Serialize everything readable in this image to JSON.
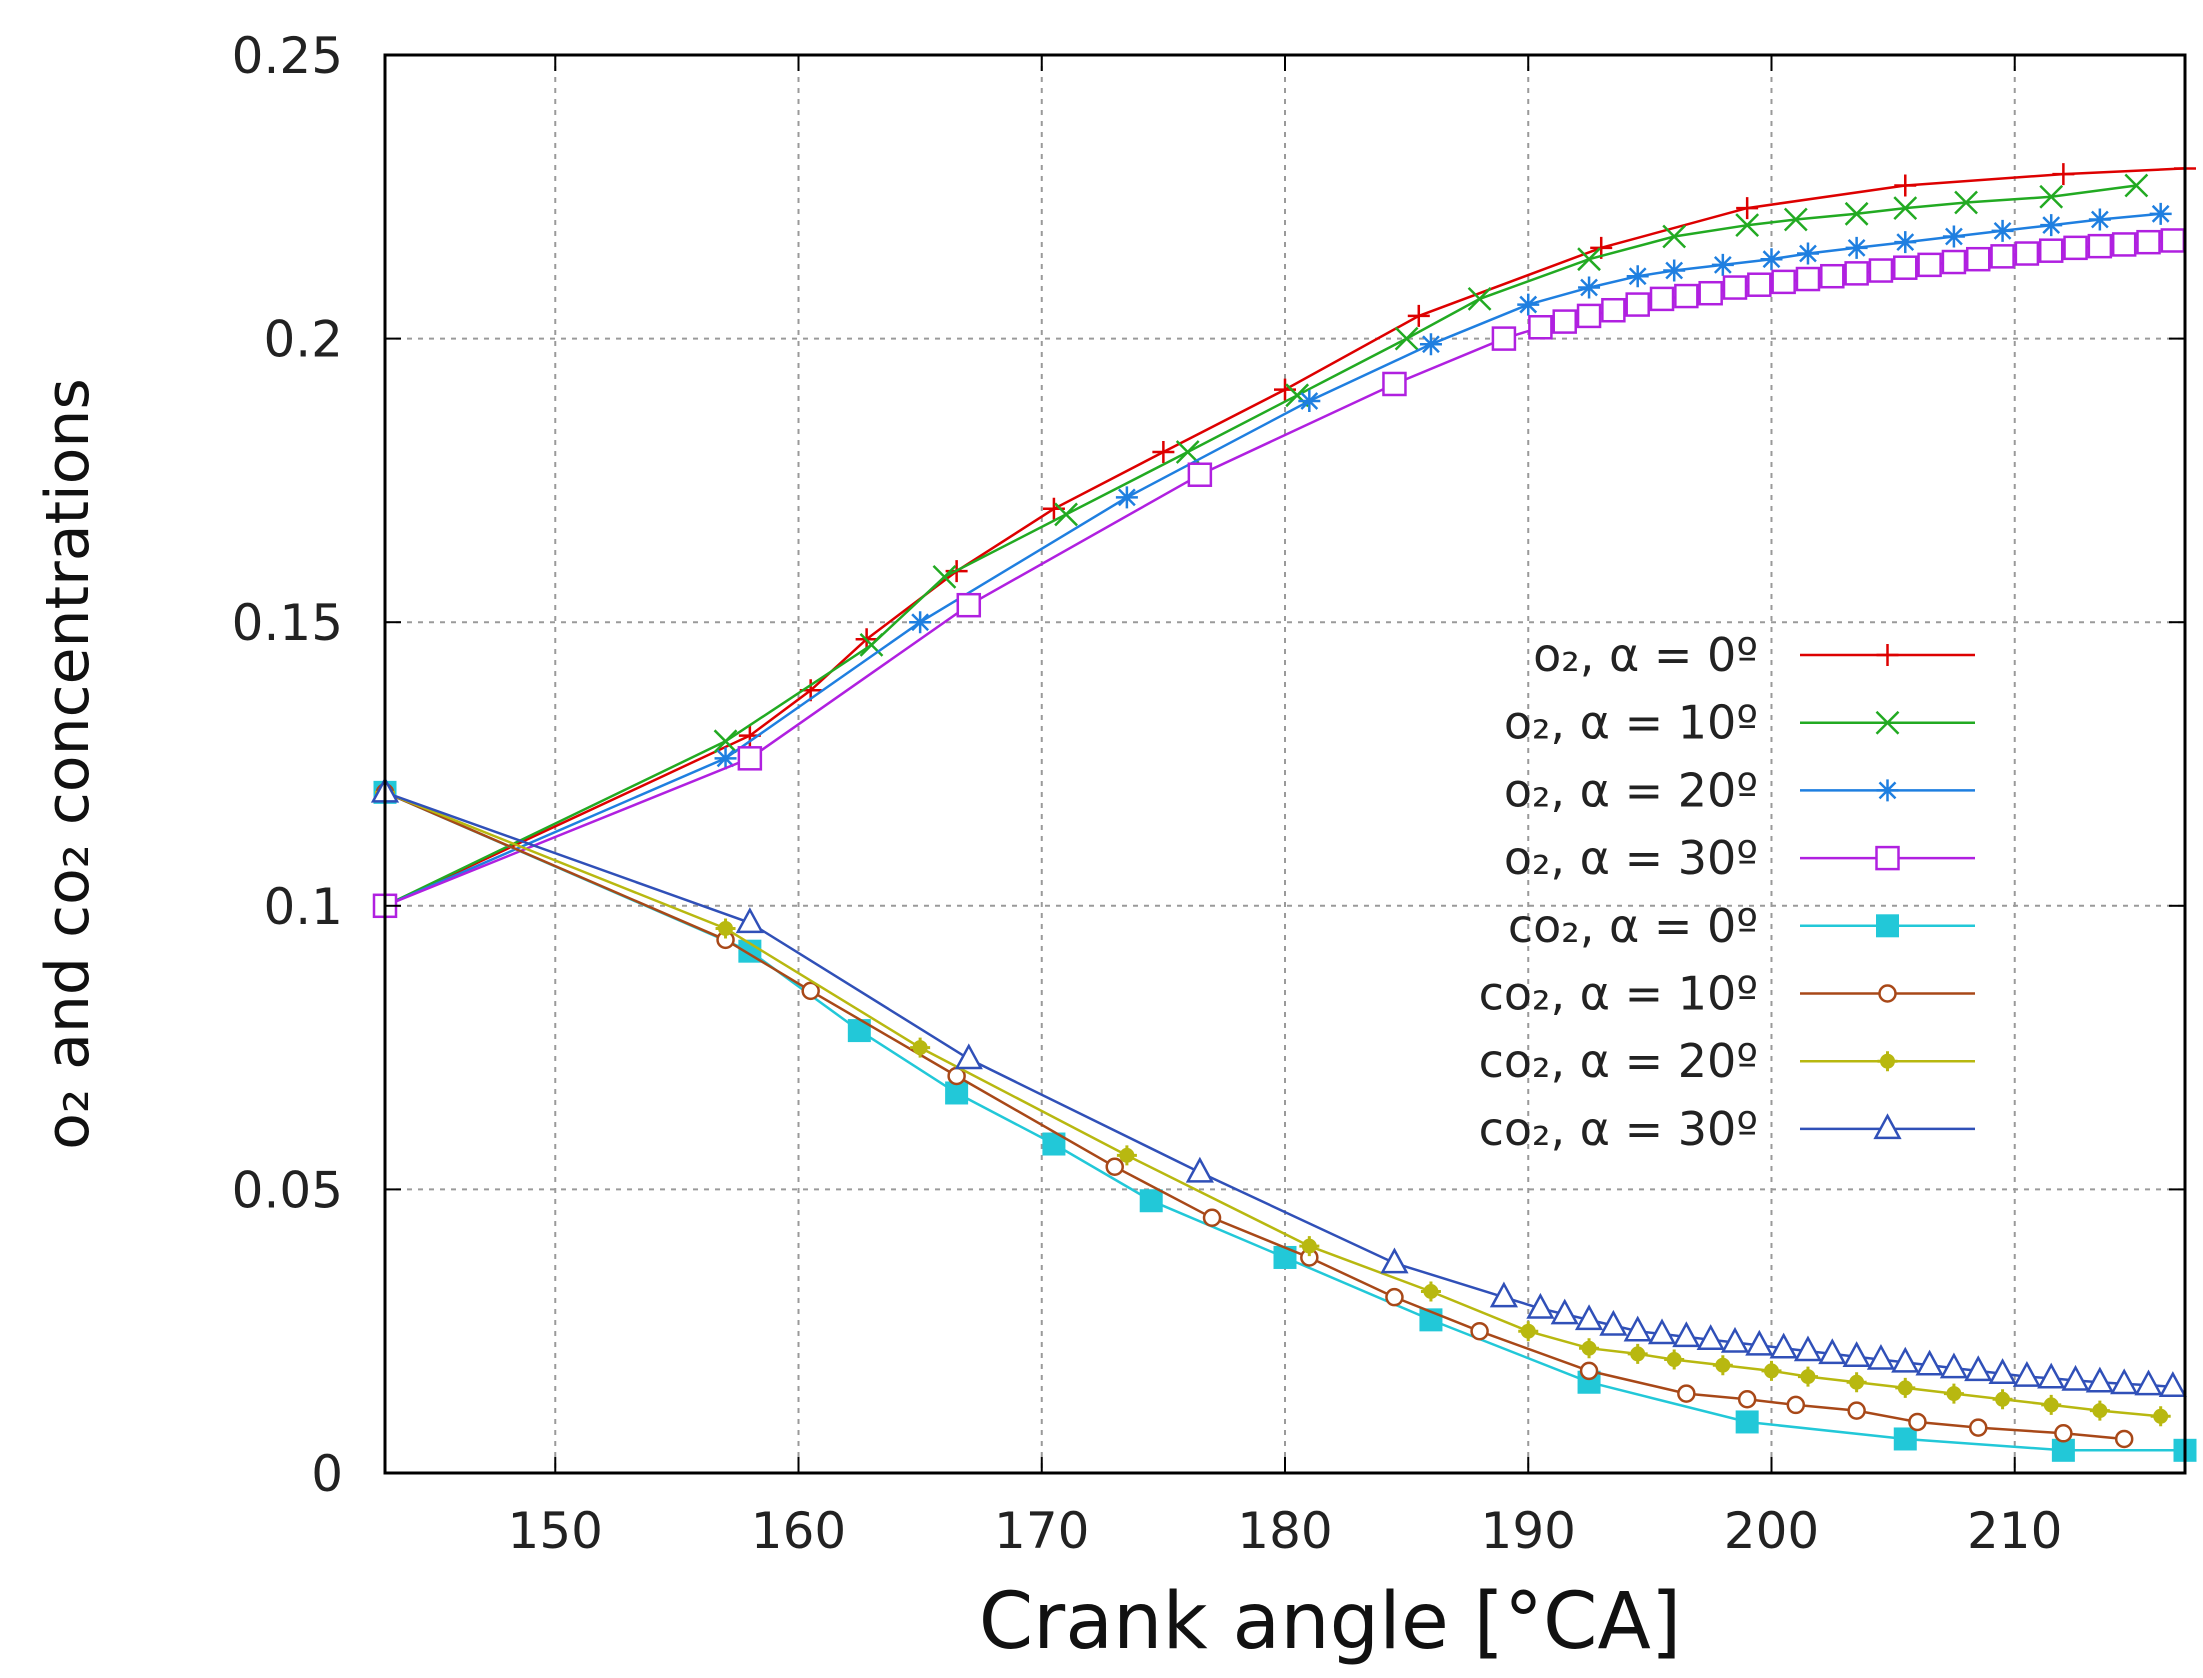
{
  "chart_data": {
    "type": "line",
    "title": "",
    "xlabel": "Crank angle [°CA]",
    "ylabel": "o₂ and co₂ concentrations",
    "xlim": [
      143,
      217
    ],
    "ylim": [
      0,
      0.25
    ],
    "x_ticks": [
      150,
      160,
      170,
      180,
      190,
      200,
      210
    ],
    "y_ticks": [
      0,
      0.05,
      0.1,
      0.15,
      0.2,
      0.25
    ],
    "x_tick_labels": [
      "150",
      "160",
      "170",
      "180",
      "190",
      "200",
      "210"
    ],
    "y_tick_labels": [
      "0",
      "0.05",
      "0.1",
      "0.15",
      "0.2",
      "0.25"
    ],
    "grid": true,
    "legend_position": "right-center",
    "series": [
      {
        "name": "o₂, α = 0º",
        "color": "#dd0000",
        "marker": "plus",
        "points": [
          [
            143,
            0.1
          ],
          [
            158,
            0.13
          ],
          [
            160.5,
            0.138
          ],
          [
            162.8,
            0.147
          ],
          [
            166.5,
            0.159
          ],
          [
            170.5,
            0.17
          ],
          [
            175,
            0.18
          ],
          [
            180,
            0.191
          ],
          [
            185.5,
            0.204
          ],
          [
            193,
            0.216
          ],
          [
            199,
            0.223
          ],
          [
            205.5,
            0.227
          ],
          [
            212,
            0.229
          ],
          [
            217,
            0.23
          ]
        ]
      },
      {
        "name": "o₂, α = 10º",
        "color": "#22aa22",
        "marker": "x",
        "points": [
          [
            143,
            0.1
          ],
          [
            157,
            0.129
          ],
          [
            163,
            0.146
          ],
          [
            166,
            0.158
          ],
          [
            171,
            0.169
          ],
          [
            176,
            0.18
          ],
          [
            180.5,
            0.19
          ],
          [
            185,
            0.2
          ],
          [
            188,
            0.207
          ],
          [
            192.5,
            0.214
          ],
          [
            196,
            0.218
          ],
          [
            199,
            0.22
          ],
          [
            201,
            0.221
          ],
          [
            203.5,
            0.222
          ],
          [
            205.5,
            0.223
          ],
          [
            208,
            0.224
          ],
          [
            211.5,
            0.225
          ],
          [
            215,
            0.227
          ]
        ]
      },
      {
        "name": "o₂, α = 20º",
        "color": "#1f7fe0",
        "marker": "star",
        "points": [
          [
            143,
            0.1
          ],
          [
            157,
            0.126
          ],
          [
            165,
            0.15
          ],
          [
            173.5,
            0.172
          ],
          [
            181,
            0.189
          ],
          [
            186,
            0.199
          ],
          [
            190,
            0.206
          ],
          [
            192.5,
            0.209
          ],
          [
            194.5,
            0.211
          ],
          [
            196,
            0.212
          ],
          [
            198,
            0.213
          ],
          [
            200,
            0.214
          ],
          [
            201.5,
            0.215
          ],
          [
            203.5,
            0.216
          ],
          [
            205.5,
            0.217
          ],
          [
            207.5,
            0.218
          ],
          [
            209.5,
            0.219
          ],
          [
            211.5,
            0.22
          ],
          [
            213.5,
            0.221
          ],
          [
            216,
            0.222
          ]
        ]
      },
      {
        "name": "o₂, α = 30º",
        "color": "#b020e0",
        "marker": "open-square",
        "points": [
          [
            143,
            0.1
          ],
          [
            158,
            0.126
          ],
          [
            167,
            0.153
          ],
          [
            176.5,
            0.176
          ],
          [
            184.5,
            0.192
          ],
          [
            189,
            0.2
          ],
          [
            190.5,
            0.202
          ],
          [
            191.5,
            0.203
          ],
          [
            192.5,
            0.204
          ],
          [
            193.5,
            0.205
          ],
          [
            194.5,
            0.206
          ],
          [
            195.5,
            0.207
          ],
          [
            196.5,
            0.2075
          ],
          [
            197.5,
            0.208
          ],
          [
            198.5,
            0.209
          ],
          [
            199.5,
            0.2095
          ],
          [
            200.5,
            0.21
          ],
          [
            201.5,
            0.2105
          ],
          [
            202.5,
            0.211
          ],
          [
            203.5,
            0.2115
          ],
          [
            204.5,
            0.212
          ],
          [
            205.5,
            0.2125
          ],
          [
            206.5,
            0.213
          ],
          [
            207.5,
            0.2135
          ],
          [
            208.5,
            0.214
          ],
          [
            209.5,
            0.2145
          ],
          [
            210.5,
            0.215
          ],
          [
            211.5,
            0.2155
          ],
          [
            212.5,
            0.216
          ],
          [
            213.5,
            0.2163
          ],
          [
            214.5,
            0.2166
          ],
          [
            215.5,
            0.217
          ],
          [
            216.5,
            0.2173
          ]
        ]
      },
      {
        "name": "co₂, α = 0º",
        "color": "#22c8d8",
        "marker": "filled-square",
        "points": [
          [
            143,
            0.12
          ],
          [
            158,
            0.092
          ],
          [
            162.5,
            0.078
          ],
          [
            166.5,
            0.067
          ],
          [
            170.5,
            0.058
          ],
          [
            174.5,
            0.048
          ],
          [
            180,
            0.038
          ],
          [
            186,
            0.027
          ],
          [
            192.5,
            0.016
          ],
          [
            199,
            0.009
          ],
          [
            205.5,
            0.006
          ],
          [
            212,
            0.004
          ],
          [
            217,
            0.004
          ]
        ]
      },
      {
        "name": "co₂, α = 10º",
        "color": "#a84818",
        "marker": "open-circle",
        "points": [
          [
            143,
            0.12
          ],
          [
            157,
            0.094
          ],
          [
            160.5,
            0.085
          ],
          [
            166.5,
            0.07
          ],
          [
            173,
            0.054
          ],
          [
            177,
            0.045
          ],
          [
            181,
            0.038
          ],
          [
            184.5,
            0.031
          ],
          [
            188,
            0.025
          ],
          [
            192.5,
            0.018
          ],
          [
            196.5,
            0.014
          ],
          [
            199,
            0.013
          ],
          [
            201,
            0.012
          ],
          [
            203.5,
            0.011
          ],
          [
            206,
            0.009
          ],
          [
            208.5,
            0.008
          ],
          [
            212,
            0.007
          ],
          [
            214.5,
            0.006
          ]
        ]
      },
      {
        "name": "co₂, α = 20º",
        "color": "#b8b810",
        "marker": "filled-star",
        "points": [
          [
            143,
            0.12
          ],
          [
            157,
            0.096
          ],
          [
            165,
            0.075
          ],
          [
            173.5,
            0.056
          ],
          [
            181,
            0.04
          ],
          [
            186,
            0.032
          ],
          [
            190,
            0.025
          ],
          [
            192.5,
            0.022
          ],
          [
            194.5,
            0.021
          ],
          [
            196,
            0.02
          ],
          [
            198,
            0.019
          ],
          [
            200,
            0.018
          ],
          [
            201.5,
            0.017
          ],
          [
            203.5,
            0.016
          ],
          [
            205.5,
            0.015
          ],
          [
            207.5,
            0.014
          ],
          [
            209.5,
            0.013
          ],
          [
            211.5,
            0.012
          ],
          [
            213.5,
            0.011
          ],
          [
            216,
            0.01
          ]
        ]
      },
      {
        "name": "co₂, α = 30º",
        "color": "#3050b8",
        "marker": "open-triangle",
        "points": [
          [
            143,
            0.12
          ],
          [
            158,
            0.097
          ],
          [
            167,
            0.073
          ],
          [
            176.5,
            0.053
          ],
          [
            184.5,
            0.037
          ],
          [
            189,
            0.031
          ],
          [
            190.5,
            0.029
          ],
          [
            191.5,
            0.028
          ],
          [
            192.5,
            0.027
          ],
          [
            193.5,
            0.026
          ],
          [
            194.5,
            0.025
          ],
          [
            195.5,
            0.0245
          ],
          [
            196.5,
            0.024
          ],
          [
            197.5,
            0.0235
          ],
          [
            198.5,
            0.023
          ],
          [
            199.5,
            0.0225
          ],
          [
            200.5,
            0.022
          ],
          [
            201.5,
            0.0215
          ],
          [
            202.5,
            0.021
          ],
          [
            203.5,
            0.0205
          ],
          [
            204.5,
            0.02
          ],
          [
            205.5,
            0.0195
          ],
          [
            206.5,
            0.019
          ],
          [
            207.5,
            0.0185
          ],
          [
            208.5,
            0.018
          ],
          [
            209.5,
            0.0175
          ],
          [
            210.5,
            0.017
          ],
          [
            211.5,
            0.0167
          ],
          [
            212.5,
            0.0163
          ],
          [
            213.5,
            0.016
          ],
          [
            214.5,
            0.0157
          ],
          [
            215.5,
            0.0155
          ],
          [
            216.5,
            0.0152
          ]
        ]
      }
    ]
  }
}
